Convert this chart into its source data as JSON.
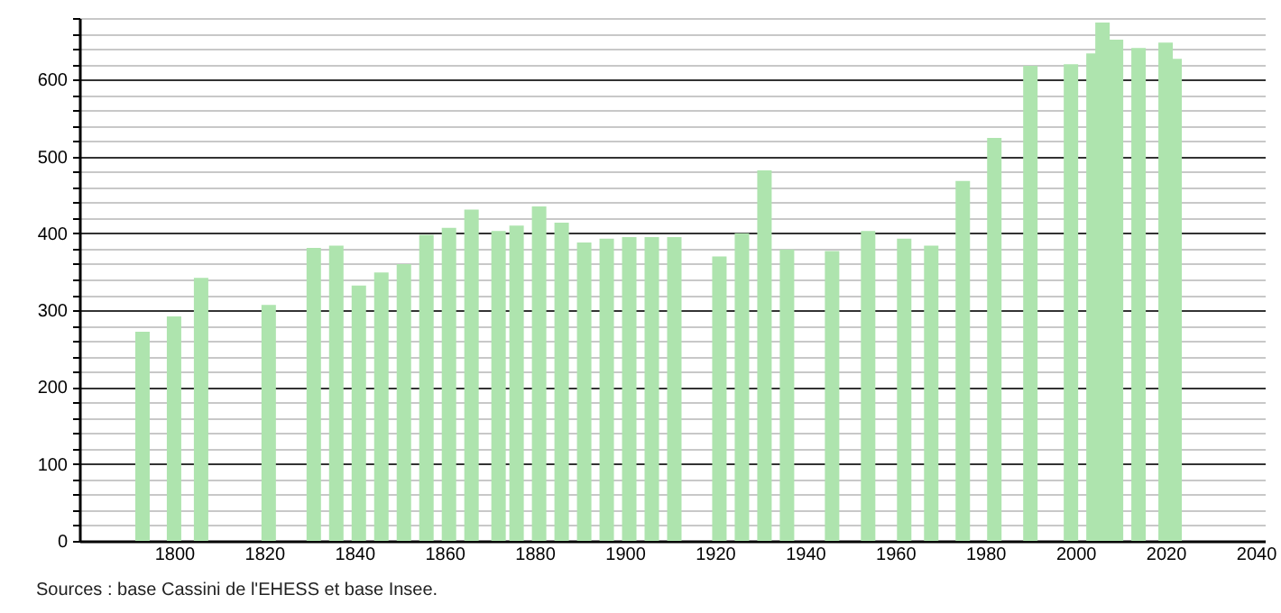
{
  "chart_data": {
    "type": "bar",
    "x": [
      1793,
      1800,
      1806,
      1821,
      1831,
      1836,
      1841,
      1846,
      1851,
      1856,
      1861,
      1866,
      1872,
      1876,
      1881,
      1886,
      1891,
      1896,
      1901,
      1906,
      1911,
      1921,
      1926,
      1931,
      1936,
      1946,
      1954,
      1962,
      1968,
      1975,
      1982,
      1990,
      1999,
      2004,
      2006,
      2009,
      2014,
      2020,
      2022
    ],
    "values": [
      272,
      292,
      342,
      307,
      381,
      384,
      332,
      349,
      360,
      398,
      407,
      431,
      403,
      410,
      435,
      414,
      388,
      393,
      395,
      395,
      395,
      370,
      400,
      482,
      379,
      377,
      403,
      393,
      384,
      468,
      524,
      618,
      620,
      634,
      674,
      652,
      641,
      648,
      627
    ],
    "color": "#aee4ae",
    "xlim": [
      1779,
      2042
    ],
    "xticks": [
      1800,
      1820,
      1840,
      1860,
      1880,
      1900,
      1920,
      1940,
      1960,
      1980,
      2000,
      2020,
      2040
    ],
    "ylim": [
      0,
      680
    ],
    "yticks": [
      0,
      {
        "value": 20,
        "label": null
      },
      {
        "value": 40,
        "label": null
      },
      {
        "value": 60,
        "label": null
      },
      {
        "value": 80,
        "label": null
      },
      100,
      {
        "value": 120,
        "label": null
      },
      {
        "value": 140,
        "label": null
      },
      {
        "value": 160,
        "label": null
      },
      {
        "value": 180,
        "label": null
      },
      200,
      {
        "value": 220,
        "label": null
      },
      {
        "value": 240,
        "label": null
      },
      {
        "value": 260,
        "label": null
      },
      {
        "value": 280,
        "label": null
      },
      300,
      {
        "value": 320,
        "label": null
      },
      {
        "value": 340,
        "label": null
      },
      {
        "value": 360,
        "label": null
      },
      {
        "value": 380,
        "label": null
      },
      400,
      {
        "value": 420,
        "label": null
      },
      {
        "value": 440,
        "label": null
      },
      {
        "value": 460,
        "label": null
      },
      {
        "value": 480,
        "label": null
      },
      500,
      {
        "value": 520,
        "label": null
      },
      {
        "value": 540,
        "label": null
      },
      {
        "value": 560,
        "label": null
      },
      {
        "value": 580,
        "label": null
      },
      600,
      {
        "value": 620,
        "label": null
      },
      {
        "value": 640,
        "label": null
      },
      {
        "value": 660,
        "label": null
      },
      {
        "value": 680,
        "label": null
      }
    ],
    "grid": "y",
    "annotations": [
      "Sources : base Cassini de l'EHESS et base Insee."
    ]
  }
}
